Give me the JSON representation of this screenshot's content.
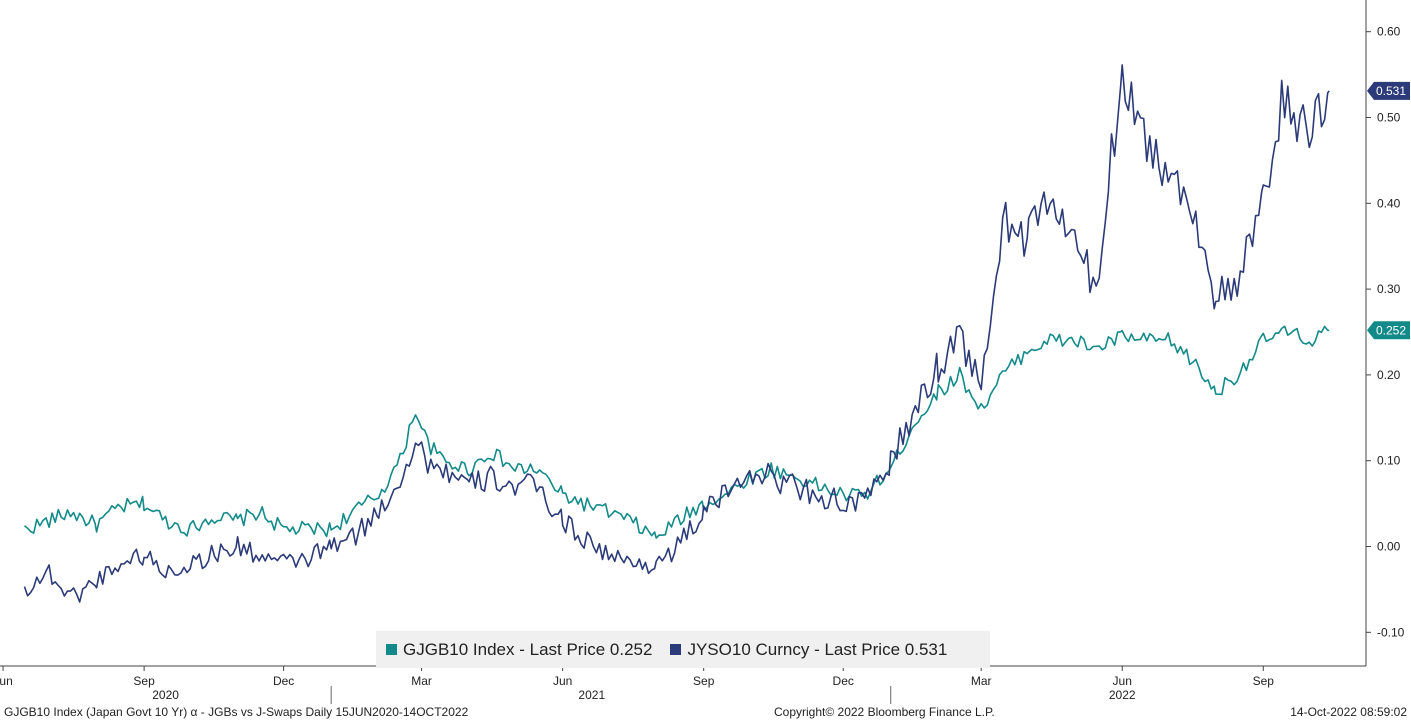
{
  "chart_data": {
    "type": "line",
    "ylim": [
      -0.15,
      0.65
    ],
    "yticks": [
      "0.60",
      "0.50",
      "0.40",
      "0.30",
      "0.20",
      "0.10",
      "0.00",
      "-0.10"
    ],
    "ytick_values": [
      0.6,
      0.5,
      0.4,
      0.3,
      0.2,
      0.1,
      0.0,
      -0.1
    ],
    "x_range": [
      "2020-06-15",
      "2022-10-14"
    ],
    "month_ticks": [
      {
        "label": "Jun",
        "date": "2020-06-01"
      },
      {
        "label": "Sep",
        "date": "2020-09-01"
      },
      {
        "label": "Dec",
        "date": "2020-12-01"
      },
      {
        "label": "Mar",
        "date": "2021-03-01"
      },
      {
        "label": "Jun",
        "date": "2021-06-01"
      },
      {
        "label": "Sep",
        "date": "2021-09-01"
      },
      {
        "label": "Dec",
        "date": "2021-12-01"
      },
      {
        "label": "Mar",
        "date": "2022-03-01"
      },
      {
        "label": "Jun",
        "date": "2022-06-01"
      },
      {
        "label": "Sep",
        "date": "2022-09-01"
      }
    ],
    "year_labels": [
      {
        "label": "2020",
        "date": "2020-09-15"
      },
      {
        "label": "2021",
        "date": "2021-06-20"
      },
      {
        "label": "2022",
        "date": "2022-06-01"
      }
    ],
    "year_separators": [
      "2021-01-01",
      "2022-01-01"
    ],
    "series": [
      {
        "name": "GJGB10 Index",
        "color": "#138a8a",
        "last_label": "0.252",
        "points": [
          [
            "2020-06-15",
            0.02
          ],
          [
            "2020-07-01",
            0.03
          ],
          [
            "2020-07-15",
            0.04
          ],
          [
            "2020-08-01",
            0.025
          ],
          [
            "2020-08-15",
            0.045
          ],
          [
            "2020-09-01",
            0.05
          ],
          [
            "2020-09-15",
            0.03
          ],
          [
            "2020-10-01",
            0.02
          ],
          [
            "2020-10-15",
            0.035
          ],
          [
            "2020-11-01",
            0.03
          ],
          [
            "2020-11-15",
            0.04
          ],
          [
            "2020-12-01",
            0.02
          ],
          [
            "2020-12-15",
            0.02
          ],
          [
            "2021-01-01",
            0.02
          ],
          [
            "2021-01-15",
            0.04
          ],
          [
            "2021-02-01",
            0.06
          ],
          [
            "2021-02-15",
            0.1
          ],
          [
            "2021-02-25",
            0.16
          ],
          [
            "2021-03-05",
            0.12
          ],
          [
            "2021-03-15",
            0.1
          ],
          [
            "2021-04-01",
            0.09
          ],
          [
            "2021-04-15",
            0.11
          ],
          [
            "2021-05-01",
            0.09
          ],
          [
            "2021-05-15",
            0.09
          ],
          [
            "2021-06-01",
            0.06
          ],
          [
            "2021-06-15",
            0.05
          ],
          [
            "2021-07-01",
            0.04
          ],
          [
            "2021-07-15",
            0.03
          ],
          [
            "2021-08-01",
            0.01
          ],
          [
            "2021-08-15",
            0.03
          ],
          [
            "2021-09-01",
            0.05
          ],
          [
            "2021-09-15",
            0.06
          ],
          [
            "2021-10-01",
            0.08
          ],
          [
            "2021-10-15",
            0.09
          ],
          [
            "2021-11-01",
            0.08
          ],
          [
            "2021-11-15",
            0.07
          ],
          [
            "2021-12-01",
            0.06
          ],
          [
            "2021-12-15",
            0.06
          ],
          [
            "2022-01-01",
            0.09
          ],
          [
            "2022-01-15",
            0.14
          ],
          [
            "2022-02-01",
            0.18
          ],
          [
            "2022-02-15",
            0.2
          ],
          [
            "2022-03-01",
            0.16
          ],
          [
            "2022-03-15",
            0.2
          ],
          [
            "2022-04-01",
            0.23
          ],
          [
            "2022-04-15",
            0.24
          ],
          [
            "2022-05-01",
            0.24
          ],
          [
            "2022-05-15",
            0.23
          ],
          [
            "2022-06-01",
            0.245
          ],
          [
            "2022-06-15",
            0.24
          ],
          [
            "2022-07-01",
            0.24
          ],
          [
            "2022-07-15",
            0.22
          ],
          [
            "2022-08-01",
            0.18
          ],
          [
            "2022-08-15",
            0.2
          ],
          [
            "2022-09-01",
            0.24
          ],
          [
            "2022-09-15",
            0.25
          ],
          [
            "2022-10-01",
            0.24
          ],
          [
            "2022-10-14",
            0.252
          ]
        ]
      },
      {
        "name": "JYSO10 Curncy",
        "color": "#2b3a78",
        "last_label": "0.531",
        "points": [
          [
            "2020-06-15",
            -0.05
          ],
          [
            "2020-07-01",
            -0.03
          ],
          [
            "2020-07-15",
            -0.06
          ],
          [
            "2020-08-01",
            -0.04
          ],
          [
            "2020-08-15",
            -0.02
          ],
          [
            "2020-09-01",
            -0.01
          ],
          [
            "2020-09-15",
            -0.03
          ],
          [
            "2020-10-01",
            -0.02
          ],
          [
            "2020-10-15",
            -0.01
          ],
          [
            "2020-11-01",
            0.0
          ],
          [
            "2020-11-15",
            -0.01
          ],
          [
            "2020-12-01",
            -0.02
          ],
          [
            "2020-12-15",
            -0.015
          ],
          [
            "2021-01-01",
            0.0
          ],
          [
            "2021-01-15",
            0.01
          ],
          [
            "2021-02-01",
            0.04
          ],
          [
            "2021-02-15",
            0.08
          ],
          [
            "2021-02-25",
            0.12
          ],
          [
            "2021-03-05",
            0.1
          ],
          [
            "2021-03-15",
            0.09
          ],
          [
            "2021-04-01",
            0.07
          ],
          [
            "2021-04-15",
            0.08
          ],
          [
            "2021-05-01",
            0.07
          ],
          [
            "2021-05-15",
            0.07
          ],
          [
            "2021-06-01",
            0.03
          ],
          [
            "2021-06-15",
            0.01
          ],
          [
            "2021-07-01",
            -0.01
          ],
          [
            "2021-07-15",
            -0.02
          ],
          [
            "2021-08-01",
            -0.02
          ],
          [
            "2021-08-15",
            0.0
          ],
          [
            "2021-09-01",
            0.04
          ],
          [
            "2021-09-15",
            0.06
          ],
          [
            "2021-10-01",
            0.09
          ],
          [
            "2021-10-15",
            0.08
          ],
          [
            "2021-11-01",
            0.07
          ],
          [
            "2021-11-15",
            0.06
          ],
          [
            "2021-12-01",
            0.05
          ],
          [
            "2021-12-15",
            0.05
          ],
          [
            "2022-01-01",
            0.1
          ],
          [
            "2022-01-15",
            0.15
          ],
          [
            "2022-02-01",
            0.21
          ],
          [
            "2022-02-15",
            0.25
          ],
          [
            "2022-03-01",
            0.18
          ],
          [
            "2022-03-15",
            0.38
          ],
          [
            "2022-04-01",
            0.36
          ],
          [
            "2022-04-15",
            0.41
          ],
          [
            "2022-05-01",
            0.35
          ],
          [
            "2022-05-15",
            0.3
          ],
          [
            "2022-06-01",
            0.56
          ],
          [
            "2022-06-15",
            0.48
          ],
          [
            "2022-07-01",
            0.43
          ],
          [
            "2022-07-15",
            0.41
          ],
          [
            "2022-08-01",
            0.29
          ],
          [
            "2022-08-15",
            0.3
          ],
          [
            "2022-09-01",
            0.4
          ],
          [
            "2022-09-15",
            0.53
          ],
          [
            "2022-10-01",
            0.47
          ],
          [
            "2022-10-14",
            0.531
          ]
        ]
      }
    ]
  },
  "legend": {
    "item1": "GJGB10 Index - Last Price 0.252",
    "item2": "JYSO10 Curncy - Last Price 0.531"
  },
  "footer": {
    "left": "GJGB10 Index (Japan Govt 10 Yr) α - JGBs vs J-Swaps  Daily 15JUN2020-14OCT2022",
    "center": "Copyright© 2022 Bloomberg Finance L.P.",
    "right": "14-Oct-2022 08:59:02"
  }
}
